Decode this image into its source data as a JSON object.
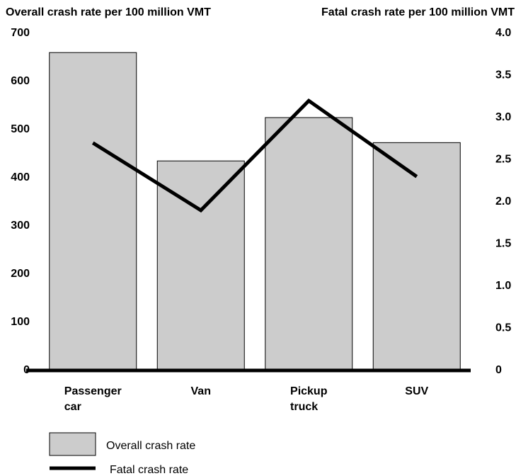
{
  "chart_data": {
    "type": "bar",
    "y_axis_label": "Overall crash rate per 100 million VMT",
    "y2_axis_label": "Fatal crash rate per 100 million VMT",
    "categories": [
      "Passenger car",
      "Van",
      "Pickup truck",
      "SUV"
    ],
    "series": [
      {
        "name": "Overall crash rate",
        "type": "bar",
        "color": "#cccccc",
        "values": [
          660,
          435,
          525,
          473
        ]
      },
      {
        "name": "Fatal crash rate",
        "type": "line",
        "axis": "y2",
        "color": "#000000",
        "values": [
          2.7,
          1.9,
          3.2,
          2.3
        ]
      }
    ],
    "ylim": [
      0,
      700
    ],
    "yticks": [
      0,
      100,
      200,
      300,
      400,
      500,
      600,
      700
    ],
    "y2lim": [
      0,
      4
    ],
    "y2ticks": [
      0,
      0.5,
      {
        "value": 1,
        "label": "1.0"
      },
      1.5,
      {
        "value": 2,
        "label": "2.0"
      },
      2.5,
      {
        "value": 3,
        "label": "3.0"
      },
      3.5,
      {
        "value": 4,
        "label": "4.0"
      }
    ],
    "legend": "bottom-left"
  }
}
